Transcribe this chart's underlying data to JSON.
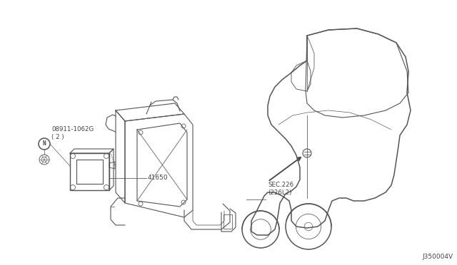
{
  "background_color": "#ffffff",
  "line_color": "#555555",
  "text_color": "#444444",
  "diagram_id": "J350004V",
  "part_labels": {
    "bolt": "08911-1062G\n( 2 )",
    "module": "41650",
    "sec": "SEC.226\n(226L2)"
  },
  "figsize": [
    6.4,
    3.72
  ],
  "dpi": 100
}
